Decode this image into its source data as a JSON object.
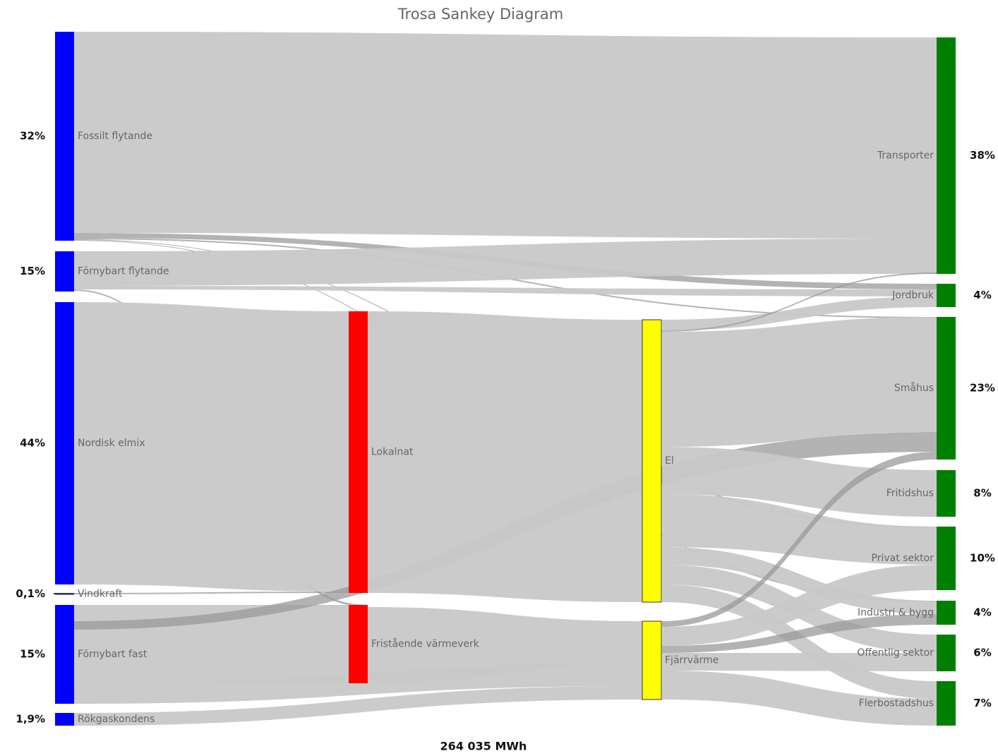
{
  "title": "Trosa Sankey Diagram",
  "total": "264 035 MWh",
  "sources": [
    {
      "label": "Fossilt flytande",
      "share": "32%"
    },
    {
      "label": "Förnybart flytande",
      "share": "15%"
    },
    {
      "label": "Nordisk elmix",
      "share": "44%"
    },
    {
      "label": "Vindkraft",
      "share": "0,1%"
    },
    {
      "label": "Förnybart fast",
      "share": "15%"
    },
    {
      "label": "Rökgaskondens",
      "share": "1,9%"
    }
  ],
  "production": [
    {
      "label": "Lokalnat"
    },
    {
      "label": "Fristående värmeverk"
    }
  ],
  "carriers": [
    {
      "label": "El"
    },
    {
      "label": "Fjärrvärme"
    }
  ],
  "uses": [
    {
      "label": "Transporter",
      "share": "38%"
    },
    {
      "label": "Jordbruk",
      "share": "4%"
    },
    {
      "label": "Småhus",
      "share": "23%"
    },
    {
      "label": "Fritidshus",
      "share": "8%"
    },
    {
      "label": "Privat sektor",
      "share": "10%"
    },
    {
      "label": "Industri & bygg",
      "share": "4%"
    },
    {
      "label": "Offentlig sektor",
      "share": "6%"
    },
    {
      "label": "Flerbostadshus",
      "share": "7%"
    }
  ]
}
